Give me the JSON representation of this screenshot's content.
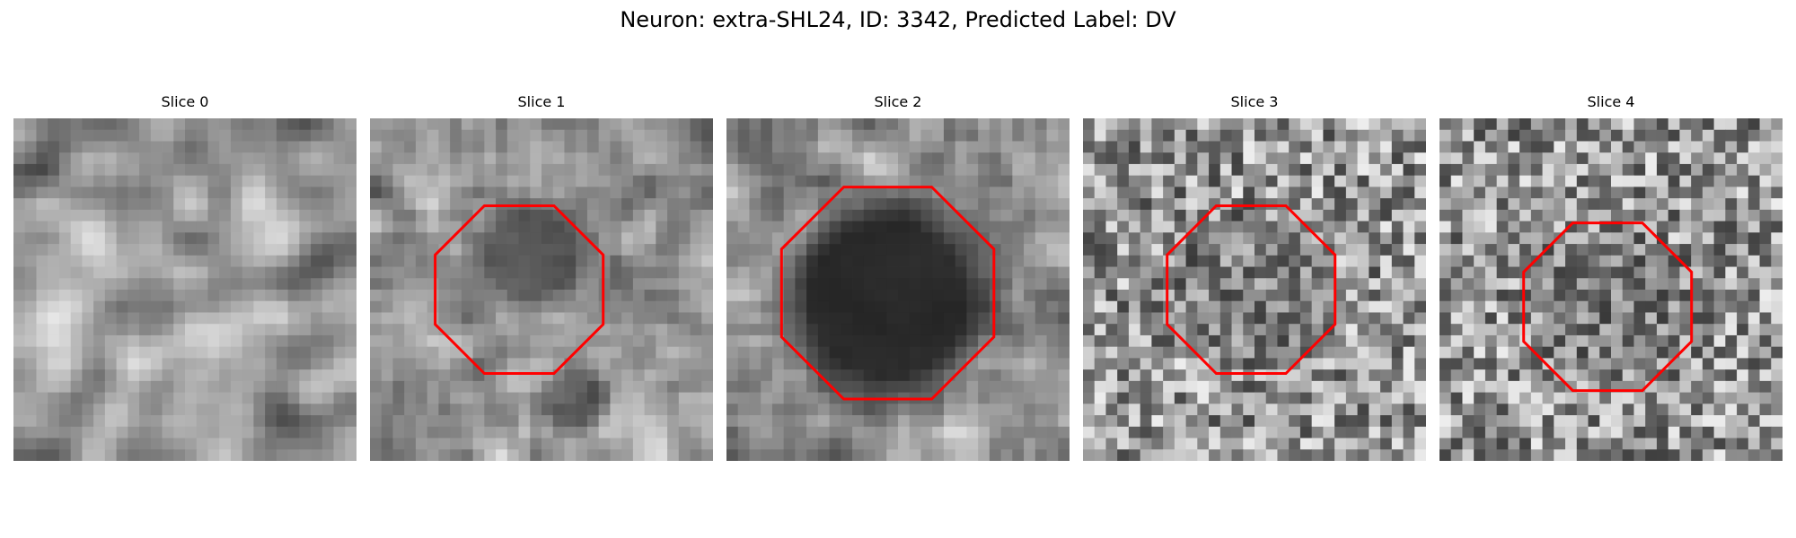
{
  "figure": {
    "title": "Neuron: extra-SHL24, ID: 3342, Predicted Label: DV"
  },
  "panels": [
    {
      "title": "Slice 0",
      "has_outline": false,
      "blob_strength": 0.0
    },
    {
      "title": "Slice 1",
      "has_outline": true,
      "blob_strength": 0.55
    },
    {
      "title": "Slice 2",
      "has_outline": true,
      "blob_strength": 0.9
    },
    {
      "title": "Slice 3",
      "has_outline": true,
      "blob_strength": 0.2
    },
    {
      "title": "Slice 4",
      "has_outline": true,
      "blob_strength": 0.2
    }
  ],
  "colors": {
    "outline": "#ff0000",
    "background": "#ffffff"
  }
}
